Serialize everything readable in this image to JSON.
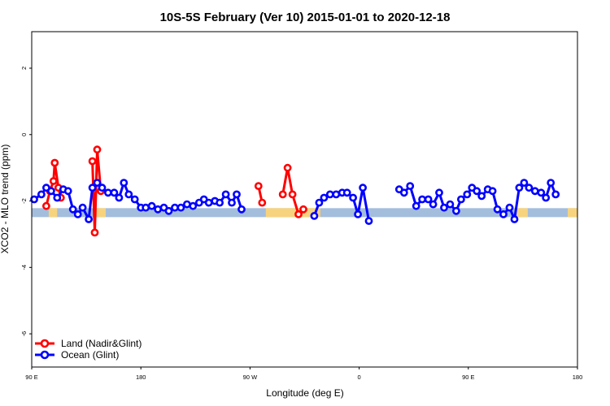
{
  "chart_data": {
    "type": "line",
    "title": "10S-5S February (Ver 10)   2015-01-01 to 2020-12-18",
    "xlabel": "Longitude (deg E)",
    "ylabel": "XCO2 - MLO trend (ppm)",
    "xlim": [
      90,
      540
    ],
    "ylim": [
      -7,
      3.1
    ],
    "x_ticks": [
      {
        "value": 90,
        "label": "90 E"
      },
      {
        "value": 180,
        "label": "180"
      },
      {
        "value": 270,
        "label": "90 W"
      },
      {
        "value": 360,
        "label": "0"
      },
      {
        "value": 450,
        "label": "90 E"
      },
      {
        "value": 540,
        "label": "180"
      }
    ],
    "y_ticks": [
      {
        "value": 2,
        "label": "2"
      },
      {
        "value": 0,
        "label": "0"
      },
      {
        "value": -2,
        "label": "-2"
      },
      {
        "value": -4,
        "label": "-4"
      },
      {
        "value": -6,
        "label": "-6"
      }
    ],
    "grid": false,
    "legend_position": "bottom-left",
    "band": {
      "y_center": -2.35,
      "ocean_color": "#a3bddd",
      "land_color": "#f7d37e",
      "land_ranges": [
        [
          104,
          111
        ],
        [
          142,
          151
        ],
        [
          283,
          328
        ],
        [
          490,
          499
        ],
        [
          532,
          540
        ]
      ]
    },
    "series": [
      {
        "name": "Land (Nadir&Glint)",
        "color": "#ff0000",
        "segments": [
          [
            [
              102,
              -2.15
            ],
            [
              105,
              -1.7
            ],
            [
              108,
              -1.4
            ],
            [
              109,
              -0.85
            ],
            [
              112,
              -1.6
            ],
            [
              114,
              -1.9
            ]
          ],
          [
            [
              140,
              -0.8
            ],
            [
              142,
              -2.95
            ],
            [
              144,
              -0.45
            ],
            [
              147,
              -1.7
            ]
          ],
          [
            [
              277,
              -1.55
            ],
            [
              280,
              -2.05
            ]
          ],
          [
            [
              297,
              -1.8
            ],
            [
              301,
              -1.0
            ],
            [
              305,
              -1.8
            ],
            [
              310,
              -2.4
            ],
            [
              314,
              -2.25
            ]
          ],
          [
            [
              108,
              -1.55
            ],
            [
              112,
              -2.15
            ]
          ],
          [
            [
              108,
              -1.55
            ],
            [
              110,
              -1.65
            ]
          ],
          [
            [
              108,
              -1.55
            ],
            [
              112,
              -2.15
            ]
          ],
          [
            [
              108,
              -1.55
            ],
            [
              112,
              -2.15
            ]
          ],
          [
            [
              108,
              -1.55
            ],
            [
              112,
              -2.15
            ]
          ],
          [
            [
              108,
              -1.55
            ],
            [
              112,
              -2.15
            ]
          ],
          [
            [
              108,
              -1.55
            ],
            [
              112,
              -2.15
            ]
          ],
          [
            [
              108,
              -1.55
            ],
            [
              112,
              -2.15
            ]
          ]
        ]
      },
      {
        "name": "Ocean (Glint)",
        "color": "#0000ff",
        "segments": [
          [
            [
              92,
              -1.95
            ],
            [
              98,
              -1.8
            ],
            [
              102,
              -1.6
            ],
            [
              106,
              -1.7
            ],
            [
              111,
              -1.9
            ],
            [
              116,
              -1.65
            ],
            [
              120,
              -1.7
            ],
            [
              124,
              -2.25
            ],
            [
              128,
              -2.4
            ],
            [
              132,
              -2.2
            ],
            [
              137,
              -2.55
            ],
            [
              140,
              -1.6
            ],
            [
              144,
              -1.45
            ],
            [
              148,
              -1.6
            ],
            [
              153,
              -1.75
            ],
            [
              158,
              -1.75
            ],
            [
              162,
              -1.9
            ],
            [
              166,
              -1.45
            ],
            [
              170,
              -1.8
            ],
            [
              175,
              -1.95
            ],
            [
              180,
              -2.2
            ],
            [
              184,
              -2.2
            ],
            [
              189,
              -2.15
            ],
            [
              194,
              -2.25
            ],
            [
              199,
              -2.2
            ],
            [
              203,
              -2.3
            ],
            [
              208,
              -2.2
            ],
            [
              213,
              -2.2
            ],
            [
              218,
              -2.1
            ],
            [
              223,
              -2.15
            ],
            [
              228,
              -2.05
            ],
            [
              232,
              -1.95
            ],
            [
              236,
              -2.05
            ],
            [
              241,
              -2.0
            ],
            [
              245,
              -2.05
            ],
            [
              250,
              -1.8
            ],
            [
              255,
              -2.05
            ],
            [
              259,
              -1.8
            ],
            [
              263,
              -2.25
            ]
          ],
          [
            [
              323,
              -2.45
            ],
            [
              327,
              -2.05
            ],
            [
              331,
              -1.9
            ],
            [
              336,
              -1.8
            ],
            [
              341,
              -1.8
            ],
            [
              346,
              -1.75
            ],
            [
              350,
              -1.75
            ],
            [
              355,
              -1.9
            ],
            [
              359,
              -2.4
            ],
            [
              363,
              -1.6
            ],
            [
              368,
              -2.6
            ]
          ],
          [
            [
              393,
              -1.65
            ],
            [
              397,
              -1.75
            ],
            [
              402,
              -1.55
            ],
            [
              407,
              -2.15
            ],
            [
              412,
              -1.95
            ],
            [
              417,
              -1.95
            ],
            [
              421,
              -2.1
            ],
            [
              426,
              -1.75
            ],
            [
              430,
              -2.2
            ],
            [
              435,
              -2.1
            ],
            [
              440,
              -2.3
            ],
            [
              444,
              -1.95
            ],
            [
              449,
              -1.8
            ],
            [
              453,
              -1.6
            ],
            [
              457,
              -1.7
            ],
            [
              461,
              -1.85
            ],
            [
              466,
              -1.65
            ],
            [
              470,
              -1.7
            ],
            [
              474,
              -2.25
            ],
            [
              479,
              -2.4
            ],
            [
              484,
              -2.2
            ],
            [
              488,
              -2.55
            ],
            [
              492,
              -1.6
            ],
            [
              496,
              -1.45
            ],
            [
              500,
              -1.6
            ],
            [
              505,
              -1.7
            ],
            [
              510,
              -1.75
            ],
            [
              514,
              -1.9
            ],
            [
              518,
              -1.45
            ],
            [
              522,
              -1.8
            ]
          ]
        ]
      }
    ]
  }
}
